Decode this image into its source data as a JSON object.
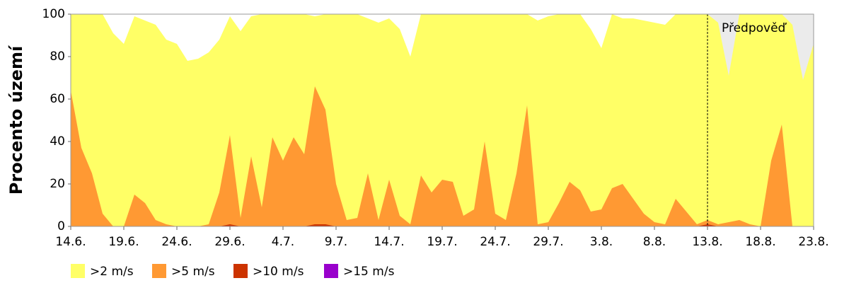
{
  "chart_data": {
    "type": "area",
    "ylabel": "Procento území",
    "categories": [
      "14.6.",
      null,
      null,
      null,
      null,
      "19.6.",
      null,
      null,
      null,
      null,
      "24.6.",
      null,
      null,
      null,
      null,
      "29.6.",
      null,
      null,
      null,
      null,
      "4.7.",
      null,
      null,
      null,
      null,
      "9.7.",
      null,
      null,
      null,
      null,
      "14.7.",
      null,
      null,
      null,
      null,
      "19.7.",
      null,
      null,
      null,
      null,
      "24.7.",
      null,
      null,
      null,
      null,
      "29.7.",
      null,
      null,
      null,
      null,
      "3.8.",
      null,
      null,
      null,
      null,
      "8.8.",
      null,
      null,
      null,
      null,
      "13.8.",
      null,
      null,
      null,
      null,
      "18.8.",
      null,
      null,
      null,
      null,
      "23.8."
    ],
    "series": [
      {
        "name": ">2 m/s",
        "color": "#ffff66",
        "values": [
          100,
          100,
          100,
          100,
          91,
          86,
          99,
          97,
          95,
          88,
          86,
          78,
          79,
          82,
          88,
          99,
          92,
          99,
          100,
          100,
          100,
          100,
          100,
          99,
          100,
          100,
          100,
          100,
          98,
          96,
          98,
          93,
          80,
          100,
          100,
          100,
          100,
          100,
          100,
          100,
          100,
          100,
          100,
          100,
          97,
          99,
          100,
          100,
          100,
          93,
          84,
          100,
          98,
          98,
          97,
          96,
          95,
          100,
          100,
          100,
          100,
          96,
          71,
          100,
          100,
          100,
          100,
          100,
          95,
          69,
          86
        ]
      },
      {
        "name": ">5 m/s",
        "color": "#ff9933",
        "values": [
          64,
          37,
          25,
          6,
          0,
          0,
          15,
          11,
          3,
          1,
          0,
          0,
          0,
          1,
          16,
          43,
          4,
          33,
          9,
          42,
          31,
          42,
          34,
          66,
          55,
          20,
          3,
          4,
          25,
          3,
          22,
          5,
          1,
          24,
          16,
          22,
          21,
          5,
          8,
          40,
          6,
          3,
          25,
          57,
          1,
          2,
          11,
          21,
          17,
          7,
          8,
          18,
          20,
          13,
          6,
          2,
          1,
          13,
          7,
          1,
          3,
          1,
          2,
          3,
          1,
          0,
          31,
          48,
          0,
          0,
          null
        ]
      },
      {
        "name": ">10 m/s",
        "color": "#cc3300",
        "values": [
          0,
          0,
          0,
          0,
          0,
          0,
          0,
          0,
          0,
          0,
          0,
          0,
          0,
          0,
          0,
          1,
          0,
          0,
          0,
          0,
          0,
          0,
          0,
          1,
          1,
          0,
          0,
          0,
          0,
          0,
          0,
          0,
          0,
          0,
          0,
          0,
          0,
          0,
          0,
          0,
          0,
          0,
          0,
          0,
          0,
          0,
          0,
          0,
          0,
          0,
          0,
          0,
          0,
          0,
          0,
          0,
          0,
          0,
          0,
          0,
          1,
          0,
          0,
          0,
          0,
          0,
          0,
          0,
          0,
          0,
          null
        ]
      },
      {
        "name": ">15 m/s",
        "color": "#9900cc",
        "values": [
          0,
          0,
          0,
          0,
          0,
          0,
          0,
          0,
          0,
          0,
          0,
          0,
          0,
          0,
          0,
          0,
          0,
          0,
          0,
          0,
          0,
          0,
          0,
          0,
          0,
          0,
          0,
          0,
          0,
          0,
          0,
          0,
          0,
          0,
          0,
          0,
          0,
          0,
          0,
          0,
          0,
          0,
          0,
          0,
          0,
          0,
          0,
          0,
          0,
          0,
          0,
          0,
          0,
          0,
          0,
          0,
          0,
          0,
          0,
          0,
          0,
          0,
          0,
          0,
          0,
          0,
          0,
          0,
          0,
          0,
          null
        ]
      }
    ],
    "forecast": {
      "label": "Předpověď",
      "from": "13.8.",
      "color": "#ebebeb"
    },
    "ylim": [
      0,
      100
    ],
    "yticks": [
      0,
      20,
      40,
      60,
      80,
      100
    ]
  }
}
